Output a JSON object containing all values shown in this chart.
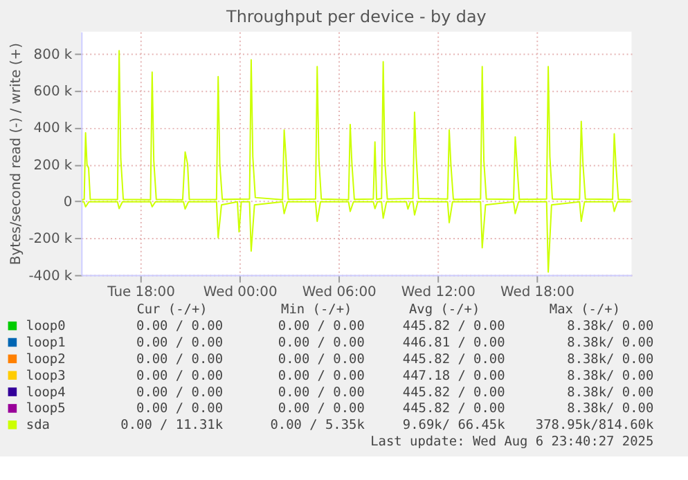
{
  "chart_data": {
    "type": "line",
    "title": "Throughput per device - by day",
    "ylabel": "Bytes/second read (-) / write (+)",
    "xlim": [
      "2025-08-05T14:24",
      "2025-08-06T23:45"
    ],
    "xticks": [
      {
        "value": "2025-08-05T18:00",
        "label": "Tue 18:00"
      },
      {
        "value": "2025-08-06T00:00",
        "label": "Wed 00:00"
      },
      {
        "value": "2025-08-06T06:00",
        "label": "Wed 06:00"
      },
      {
        "value": "2025-08-06T12:00",
        "label": "Wed 12:00"
      },
      {
        "value": "2025-08-06T18:00",
        "label": "Wed 18:00"
      }
    ],
    "ylim": [
      -400000,
      920000
    ],
    "yticks": [
      {
        "value": -400000,
        "label": "-400 k"
      },
      {
        "value": -200000,
        "label": "-200 k"
      },
      0,
      {
        "value": 200000,
        "label": "200 k"
      },
      {
        "value": 400000,
        "label": "400 k"
      },
      {
        "value": 600000,
        "label": "600 k"
      },
      {
        "value": 800000,
        "label": "800 k"
      }
    ],
    "grid": true,
    "legend": "bottom",
    "series": [
      {
        "name": "loop0",
        "color": "#00cc00"
      },
      {
        "name": "loop1",
        "color": "#0066b3"
      },
      {
        "name": "loop2",
        "color": "#ff8000"
      },
      {
        "name": "loop3",
        "color": "#ffcc00"
      },
      {
        "name": "loop4",
        "color": "#330099"
      },
      {
        "name": "loop5",
        "color": "#990099"
      },
      {
        "name": "sda",
        "color": "#ccff00",
        "x": [
          "2025-08-05T14:27",
          "2025-08-05T14:35",
          "2025-08-05T14:40",
          "2025-08-05T14:45",
          "2025-08-05T14:51",
          "2025-08-05T14:57",
          "2025-08-05T16:36",
          "2025-08-05T16:42",
          "2025-08-05T16:48",
          "2025-08-05T16:57",
          "2025-08-05T18:36",
          "2025-08-05T18:42",
          "2025-08-05T18:48",
          "2025-08-05T18:57",
          "2025-08-05T20:33",
          "2025-08-05T20:42",
          "2025-08-05T20:51",
          "2025-08-05T20:57",
          "2025-08-05T22:36",
          "2025-08-05T22:42",
          "2025-08-05T22:48",
          "2025-08-05T22:57",
          "2025-08-06T00:36",
          "2025-08-06T00:42",
          "2025-08-06T00:48",
          "2025-08-06T00:57",
          "2025-08-06T02:36",
          "2025-08-06T02:42",
          "2025-08-06T02:48",
          "2025-08-06T02:57",
          "2025-08-06T04:36",
          "2025-08-06T04:42",
          "2025-08-06T04:48",
          "2025-08-06T04:57",
          "2025-08-06T06:36",
          "2025-08-06T06:42",
          "2025-08-06T06:48",
          "2025-08-06T06:57",
          "2025-08-06T08:06",
          "2025-08-06T08:12",
          "2025-08-06T08:18",
          "2025-08-06T08:36",
          "2025-08-06T08:42",
          "2025-08-06T08:48",
          "2025-08-06T08:57",
          "2025-08-06T10:30",
          "2025-08-06T10:36",
          "2025-08-06T10:42",
          "2025-08-06T10:51",
          "2025-08-06T12:36",
          "2025-08-06T12:42",
          "2025-08-06T12:48",
          "2025-08-06T12:57",
          "2025-08-06T14:36",
          "2025-08-06T14:42",
          "2025-08-06T14:48",
          "2025-08-06T14:57",
          "2025-08-06T16:36",
          "2025-08-06T16:42",
          "2025-08-06T16:48",
          "2025-08-06T16:57",
          "2025-08-06T18:36",
          "2025-08-06T18:42",
          "2025-08-06T18:48",
          "2025-08-06T18:57",
          "2025-08-06T20:36",
          "2025-08-06T20:42",
          "2025-08-06T20:48",
          "2025-08-06T20:57",
          "2025-08-06T22:36",
          "2025-08-06T22:42",
          "2025-08-06T22:48",
          "2025-08-06T22:57",
          "2025-08-06T23:42"
        ],
        "values": [
          8000,
          10000,
          371000,
          200000,
          180000,
          10000,
          9000,
          817000,
          230000,
          10000,
          8000,
          700000,
          220000,
          10000,
          8000,
          267000,
          200000,
          10000,
          9000,
          676000,
          200000,
          10000,
          12000,
          767000,
          240000,
          20000,
          8000,
          386000,
          250000,
          10000,
          12000,
          730000,
          230000,
          12000,
          8000,
          416000,
          210000,
          10000,
          12000,
          322000,
          10000,
          15000,
          757000,
          220000,
          12000,
          15000,
          483000,
          240000,
          15000,
          12000,
          386000,
          200000,
          10000,
          12000,
          730000,
          220000,
          12000,
          10000,
          349000,
          210000,
          10000,
          12000,
          730000,
          240000,
          12000,
          10000,
          433000,
          210000,
          12000,
          10000,
          366000,
          200000,
          10000,
          8000
        ]
      },
      {
        "color": "#ccff00",
        "x": [
          "2025-08-05T14:27",
          "2025-08-05T14:34",
          "2025-08-05T14:40",
          "2025-08-05T14:52",
          "2025-08-05T16:36",
          "2025-08-05T16:42",
          "2025-08-05T16:54",
          "2025-08-05T18:36",
          "2025-08-05T18:42",
          "2025-08-05T18:54",
          "2025-08-05T20:36",
          "2025-08-05T20:42",
          "2025-08-05T20:54",
          "2025-08-05T22:36",
          "2025-08-05T22:42",
          "2025-08-05T22:54",
          "2025-08-05T23:52",
          "2025-08-05T23:58",
          "2025-08-06T00:06",
          "2025-08-06T00:36",
          "2025-08-06T00:42",
          "2025-08-06T00:54",
          "2025-08-06T02:36",
          "2025-08-06T02:42",
          "2025-08-06T02:54",
          "2025-08-06T04:36",
          "2025-08-06T04:42",
          "2025-08-06T04:54",
          "2025-08-06T06:36",
          "2025-08-06T06:42",
          "2025-08-06T06:54",
          "2025-08-06T08:06",
          "2025-08-06T08:12",
          "2025-08-06T08:21",
          "2025-08-06T08:36",
          "2025-08-06T08:42",
          "2025-08-06T08:54",
          "2025-08-06T10:06",
          "2025-08-06T10:12",
          "2025-08-06T10:21",
          "2025-08-06T10:30",
          "2025-08-06T10:36",
          "2025-08-06T10:48",
          "2025-08-06T12:36",
          "2025-08-06T12:42",
          "2025-08-06T12:54",
          "2025-08-06T14:36",
          "2025-08-06T14:42",
          "2025-08-06T14:54",
          "2025-08-06T16:36",
          "2025-08-06T16:42",
          "2025-08-06T16:54",
          "2025-08-06T18:36",
          "2025-08-06T18:42",
          "2025-08-06T18:54",
          "2025-08-06T20:36",
          "2025-08-06T20:42",
          "2025-08-06T20:54",
          "2025-08-06T22:36",
          "2025-08-06T22:42",
          "2025-08-06T22:54",
          "2025-08-06T23:42"
        ],
        "values": [
          -3000,
          -3000,
          -30000,
          -3000,
          -3000,
          -40000,
          -3000,
          -3000,
          -30000,
          -3000,
          -3000,
          -42000,
          -3000,
          -3000,
          -198000,
          -20000,
          -3000,
          -166000,
          -3000,
          -3000,
          -270000,
          -20000,
          -3000,
          -67000,
          -3000,
          -3000,
          -109000,
          -3000,
          -3000,
          -55000,
          -3000,
          -3000,
          -40000,
          -3000,
          -3000,
          -92000,
          -3000,
          -3000,
          -42000,
          -3000,
          -3000,
          -74000,
          -3000,
          -3000,
          -116000,
          -3000,
          -3000,
          -252000,
          -20000,
          -3000,
          -67000,
          -3000,
          -3000,
          -384000,
          -20000,
          -3000,
          -109000,
          -3000,
          -3000,
          -55000,
          -3000,
          -3000
        ]
      }
    ],
    "annotations": [
      "Cur (-/+)",
      "Min (-/+)",
      "Avg (-/+)",
      "Max (-/+)",
      "0.00 /  0.00",
      "0.00 /  0.00",
      "445.82 /  0.00",
      "8.38k/  0.00",
      "0.00 /  0.00",
      "0.00 /  0.00",
      "446.81 /  0.00",
      "8.38k/  0.00",
      "0.00 /  0.00",
      "0.00 /  0.00",
      "445.82 /  0.00",
      "8.38k/  0.00",
      "0.00 /  0.00",
      "0.00 /  0.00",
      "447.18 /  0.00",
      "8.38k/  0.00",
      "0.00 /  0.00",
      "0.00 /  0.00",
      "445.82 /  0.00",
      "8.38k/  0.00",
      "0.00 /  0.00",
      "0.00 /  0.00",
      "445.82 /  0.00",
      "8.38k/  0.00",
      "0.00 / 11.31k",
      "0.00 /  5.35k",
      "9.69k/ 66.45k",
      "378.95k/814.60k",
      "Last update: Wed Aug  6 23:40:27 2025"
    ]
  }
}
